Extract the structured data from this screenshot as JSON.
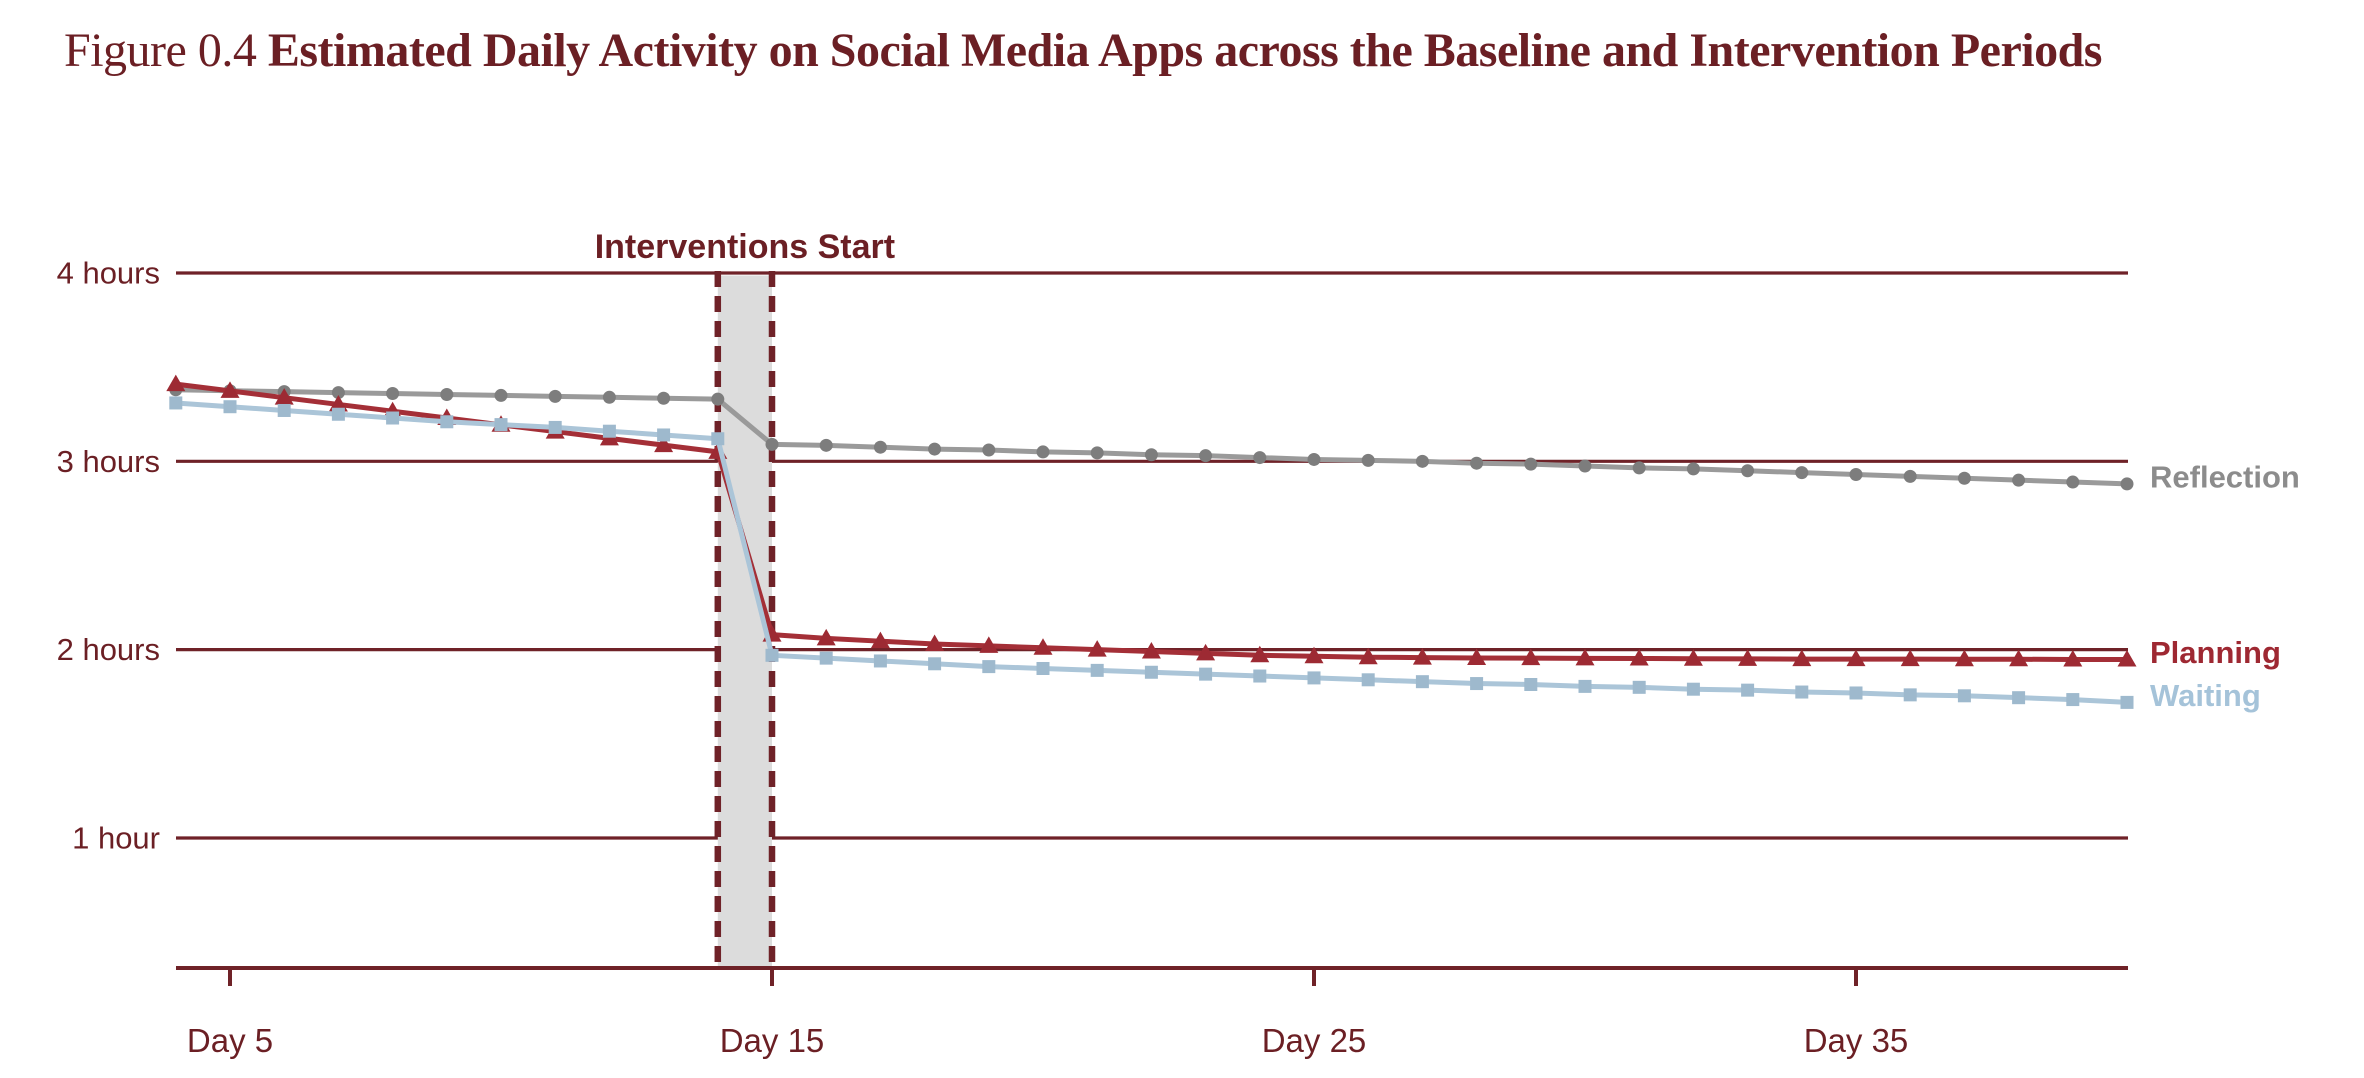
{
  "figure": {
    "label_prefix": "Figure 0.4",
    "title": "Estimated Daily Activity on Social Media Apps across the Baseline and Intervention Periods"
  },
  "colors": {
    "background": "#ffffff",
    "maroon_text": "#6b1f24",
    "maroon_line": "#6f2228",
    "band_fill": "#dcdcdc"
  },
  "chart_data": {
    "type": "line",
    "title": "Estimated Daily Activity on Social Media Apps across the Baseline and Intervention Periods",
    "xlim": [
      4,
      40
    ],
    "ylim": [
      0.31,
      4
    ],
    "grid": "horizontal",
    "legend_position": "right-end-of-lines",
    "days": [
      4,
      5,
      6,
      7,
      8,
      9,
      10,
      11,
      12,
      13,
      14,
      15,
      16,
      17,
      18,
      19,
      20,
      21,
      22,
      23,
      24,
      25,
      26,
      27,
      28,
      29,
      30,
      31,
      32,
      33,
      34,
      35,
      36,
      37,
      38,
      39,
      40
    ],
    "x_ticks": [
      {
        "day": 5,
        "label": "Day 5"
      },
      {
        "day": 15,
        "label": "Day 15"
      },
      {
        "day": 25,
        "label": "Day 25"
      },
      {
        "day": 35,
        "label": "Day 35"
      }
    ],
    "y_ticks": [
      {
        "value": 4,
        "label": "4 hours"
      },
      {
        "value": 3,
        "label": "3 hours"
      },
      {
        "value": 2,
        "label": "2 hours"
      },
      {
        "value": 1,
        "label": "1 hour"
      }
    ],
    "annotation": {
      "label": "Interventions Start",
      "band_start_day": 14,
      "band_end_day": 15,
      "style": "gray-band-with-dashed-maroon-edges"
    },
    "series": [
      {
        "name": "Reflection",
        "marker": "circle",
        "line_color": "#9a9a9a",
        "marker_color": "#7d7d7d",
        "label_color": "#8c8c8c",
        "values": [
          3.38,
          3.375,
          3.37,
          3.365,
          3.36,
          3.355,
          3.35,
          3.345,
          3.34,
          3.335,
          3.33,
          3.09,
          3.085,
          3.075,
          3.065,
          3.06,
          3.05,
          3.045,
          3.035,
          3.03,
          3.02,
          3.01,
          3.005,
          3.0,
          2.99,
          2.985,
          2.975,
          2.965,
          2.96,
          2.95,
          2.94,
          2.93,
          2.92,
          2.91,
          2.9,
          2.89,
          2.88
        ]
      },
      {
        "name": "Planning",
        "marker": "triangle",
        "line_color": "#a42f37",
        "marker_color": "#9d2a33",
        "label_color": "#9e2832",
        "values": [
          3.41,
          3.374,
          3.338,
          3.302,
          3.266,
          3.23,
          3.194,
          3.158,
          3.122,
          3.086,
          3.05,
          2.08,
          2.06,
          2.045,
          2.03,
          2.02,
          2.01,
          2.0,
          1.99,
          1.98,
          1.97,
          1.965,
          1.96,
          1.958,
          1.956,
          1.955,
          1.954,
          1.953,
          1.952,
          1.951,
          1.95,
          1.95,
          1.95,
          1.949,
          1.949,
          1.948,
          1.948
        ]
      },
      {
        "name": "Waiting",
        "marker": "square",
        "line_color": "#abc5d8",
        "marker_color": "#9eb9cd",
        "label_color": "#a5c3d9",
        "values": [
          3.31,
          3.29,
          3.27,
          3.25,
          3.23,
          3.21,
          3.195,
          3.18,
          3.16,
          3.14,
          3.12,
          1.97,
          1.955,
          1.94,
          1.925,
          1.91,
          1.9,
          1.89,
          1.88,
          1.87,
          1.86,
          1.85,
          1.84,
          1.83,
          1.82,
          1.815,
          1.805,
          1.8,
          1.79,
          1.785,
          1.775,
          1.77,
          1.76,
          1.755,
          1.745,
          1.735,
          1.72
        ]
      }
    ]
  }
}
